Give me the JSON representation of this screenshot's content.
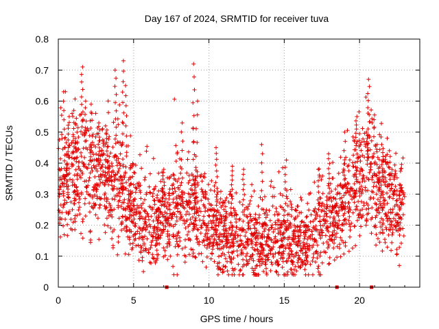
{
  "chart_data": {
    "type": "scatter",
    "title": "Day 167 of 2024, SRMTID for receiver tuva",
    "xlabel": "GPS time / hours",
    "ylabel": "SRMTID / TECUs",
    "xlim": [
      0,
      24
    ],
    "ylim": [
      0,
      0.8
    ],
    "x_ticks": [
      0,
      5,
      10,
      15,
      20
    ],
    "x_tick_labels": [
      "0",
      "5",
      "10",
      "15",
      "20"
    ],
    "y_ticks": [
      0,
      0.1,
      0.2,
      0.3,
      0.4,
      0.5,
      0.6,
      0.7,
      0.8
    ],
    "y_tick_labels": [
      "0",
      "0.1",
      "0.2",
      "0.3",
      "0.4",
      "0.5",
      "0.6",
      "0.7",
      "0.8"
    ],
    "grid": true,
    "marker": "plus",
    "color": "#e00000",
    "series": [
      {
        "name": "SRMTID",
        "trend": [
          [
            0.0,
            0.32
          ],
          [
            0.5,
            0.36
          ],
          [
            1.0,
            0.33
          ],
          [
            1.5,
            0.38
          ],
          [
            2.0,
            0.36
          ],
          [
            2.5,
            0.34
          ],
          [
            3.0,
            0.37
          ],
          [
            3.5,
            0.33
          ],
          [
            4.0,
            0.34
          ],
          [
            4.5,
            0.3
          ],
          [
            5.0,
            0.25
          ],
          [
            5.5,
            0.22
          ],
          [
            6.0,
            0.2
          ],
          [
            6.5,
            0.19
          ],
          [
            7.0,
            0.22
          ],
          [
            7.5,
            0.25
          ],
          [
            8.0,
            0.26
          ],
          [
            8.5,
            0.25
          ],
          [
            9.0,
            0.27
          ],
          [
            9.5,
            0.24
          ],
          [
            10.0,
            0.22
          ],
          [
            10.5,
            0.19
          ],
          [
            11.0,
            0.17
          ],
          [
            11.5,
            0.16
          ],
          [
            12.0,
            0.16
          ],
          [
            12.5,
            0.15
          ],
          [
            13.0,
            0.14
          ],
          [
            13.5,
            0.14
          ],
          [
            14.0,
            0.14
          ],
          [
            14.5,
            0.15
          ],
          [
            15.0,
            0.16
          ],
          [
            15.5,
            0.15
          ],
          [
            16.0,
            0.14
          ],
          [
            16.5,
            0.15
          ],
          [
            17.0,
            0.17
          ],
          [
            17.5,
            0.19
          ],
          [
            18.0,
            0.21
          ],
          [
            18.5,
            0.23
          ],
          [
            19.0,
            0.27
          ],
          [
            19.5,
            0.32
          ],
          [
            20.0,
            0.36
          ],
          [
            20.5,
            0.36
          ],
          [
            21.0,
            0.33
          ],
          [
            21.5,
            0.3
          ],
          [
            22.0,
            0.27
          ],
          [
            22.5,
            0.24
          ],
          [
            23.0,
            0.25
          ]
        ],
        "peaks": [
          [
            0.4,
            0.63
          ],
          [
            0.7,
            0.55
          ],
          [
            1.0,
            0.57
          ],
          [
            1.6,
            0.71
          ],
          [
            1.8,
            0.6
          ],
          [
            2.2,
            0.59
          ],
          [
            2.7,
            0.53
          ],
          [
            3.2,
            0.52
          ],
          [
            3.8,
            0.7
          ],
          [
            4.3,
            0.73
          ],
          [
            4.5,
            0.65
          ],
          [
            7.0,
            0.38
          ],
          [
            8.2,
            0.53
          ],
          [
            9.0,
            0.72
          ],
          [
            9.2,
            0.6
          ],
          [
            10.5,
            0.45
          ],
          [
            11.5,
            0.39
          ],
          [
            12.3,
            0.38
          ],
          [
            13.5,
            0.46
          ],
          [
            15.1,
            0.41
          ],
          [
            17.3,
            0.38
          ],
          [
            18.0,
            0.43
          ],
          [
            19.0,
            0.5
          ],
          [
            19.8,
            0.55
          ],
          [
            20.5,
            0.5
          ],
          [
            20.6,
            0.67
          ],
          [
            21.0,
            0.54
          ],
          [
            21.5,
            0.46
          ],
          [
            22.0,
            0.44
          ],
          [
            22.7,
            0.33
          ]
        ],
        "data_end_hour": 23.0
      }
    ],
    "data_gaps_hours": [
      7.2,
      18.5,
      20.8
    ]
  }
}
